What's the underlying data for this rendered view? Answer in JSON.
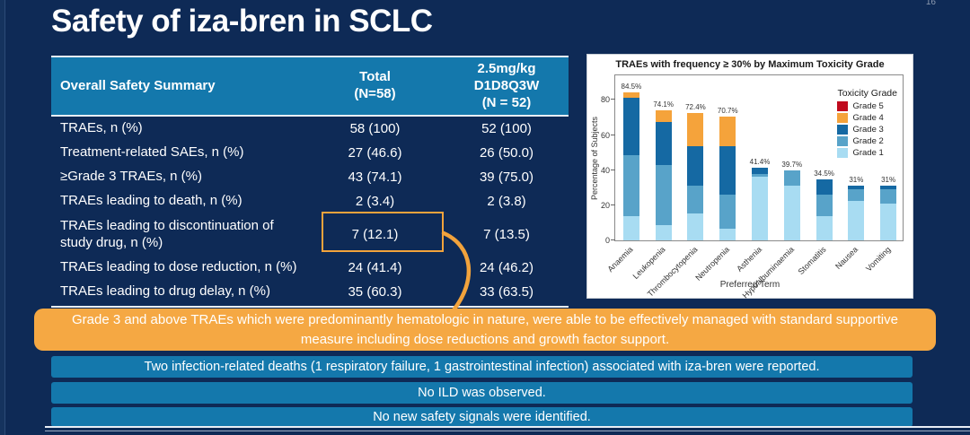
{
  "slide_number": "16",
  "title": "Safety of iza-bren in SCLC",
  "colors": {
    "background_navy": "#0E2A56",
    "table_header_blue": "#1478AC",
    "note_blue": "#1478AC",
    "callout_orange": "#F5A843",
    "highlight_border_orange": "#F2A33C"
  },
  "table": {
    "header": {
      "col1": "Overall Safety Summary",
      "col2": "Total\n(N=58)",
      "col3": "2.5mg/kg\nD1D8Q3W\n(N = 52)"
    },
    "rows": [
      {
        "label": "TRAEs, n (%)",
        "total": "58 (100)",
        "dose": "52 (100)",
        "highlighted": false,
        "tall": false
      },
      {
        "label": "Treatment-related SAEs, n (%)",
        "total": "27 (46.6)",
        "dose": "26 (50.0)",
        "highlighted": false,
        "tall": false
      },
      {
        "label": "≥Grade 3 TRAEs, n (%)",
        "total": "43 (74.1)",
        "dose": "39 (75.0)",
        "highlighted": false,
        "tall": false
      },
      {
        "label": "TRAEs leading to death, n (%)",
        "total": "2 (3.4)",
        "dose": "2 (3.8)",
        "highlighted": false,
        "tall": false
      },
      {
        "label": "TRAEs leading to discontinuation of study drug, n (%)",
        "total": "7 (12.1)",
        "dose": "7 (13.5)",
        "highlighted": true,
        "tall": true
      },
      {
        "label": "TRAEs leading to dose reduction, n (%)",
        "total": "24 (41.4)",
        "dose": "24 (46.2)",
        "highlighted": false,
        "tall": false
      },
      {
        "label": "TRAEs leading to drug delay, n (%)",
        "total": "35 (60.3)",
        "dose": "33 (63.5)",
        "highlighted": false,
        "tall": false
      }
    ]
  },
  "chart_data": {
    "type": "bar",
    "stacked": true,
    "title": "TRAEs with frequency ≥ 30% by Maximum Toxicity Grade",
    "xlabel": "Preferred Term",
    "ylabel": "Percentage of Subjects",
    "ylim": [
      0,
      95
    ],
    "yticks": [
      0,
      20,
      40,
      60,
      80
    ],
    "grid": false,
    "legend_title": "Toxicity Grade",
    "legend_position": "upper right",
    "categories": [
      "Anaemia",
      "Leukopenia",
      "Thrombocytopenia",
      "Neutropenia",
      "Asthenia",
      "Hypoalbuminaemia",
      "Stomatitis",
      "Nausea",
      "Vomiting"
    ],
    "totals_labels": [
      "84.5%",
      "74.1%",
      "72.4%",
      "70.7%",
      "41.4%",
      "39.7%",
      "34.5%",
      "31%",
      "31%"
    ],
    "series": [
      {
        "name": "Grade 1",
        "color": "#A8DCF2",
        "values": [
          13.8,
          8.6,
          15.5,
          6.9,
          36.2,
          31.0,
          13.8,
          22.4,
          20.7
        ]
      },
      {
        "name": "Grade 2",
        "color": "#58A3C9",
        "values": [
          34.5,
          34.5,
          15.5,
          19.0,
          1.7,
          8.7,
          12.1,
          6.9,
          8.6
        ]
      },
      {
        "name": "Grade 3",
        "color": "#1569A3",
        "values": [
          32.7,
          24.1,
          22.4,
          27.6,
          3.5,
          0,
          8.6,
          1.7,
          1.7
        ]
      },
      {
        "name": "Grade 4",
        "color": "#F5A33B",
        "values": [
          3.5,
          6.9,
          19.0,
          17.2,
          0,
          0,
          0,
          0,
          0
        ]
      },
      {
        "name": "Grade 5",
        "color": "#C00B1E",
        "values": [
          0,
          0,
          0,
          0,
          0,
          0,
          0,
          0,
          0
        ]
      }
    ]
  },
  "callouts": {
    "orange_note": "Grade 3 and above TRAEs which were predominantly hematologic in nature, were able to be effectively managed with standard supportive measure including dose reductions and growth factor support.",
    "notes": [
      "Two infection-related deaths (1 respiratory failure, 1 gastrointestinal infection) associated with iza-bren were reported.",
      "No ILD was observed.",
      "No new safety signals were identified."
    ]
  }
}
